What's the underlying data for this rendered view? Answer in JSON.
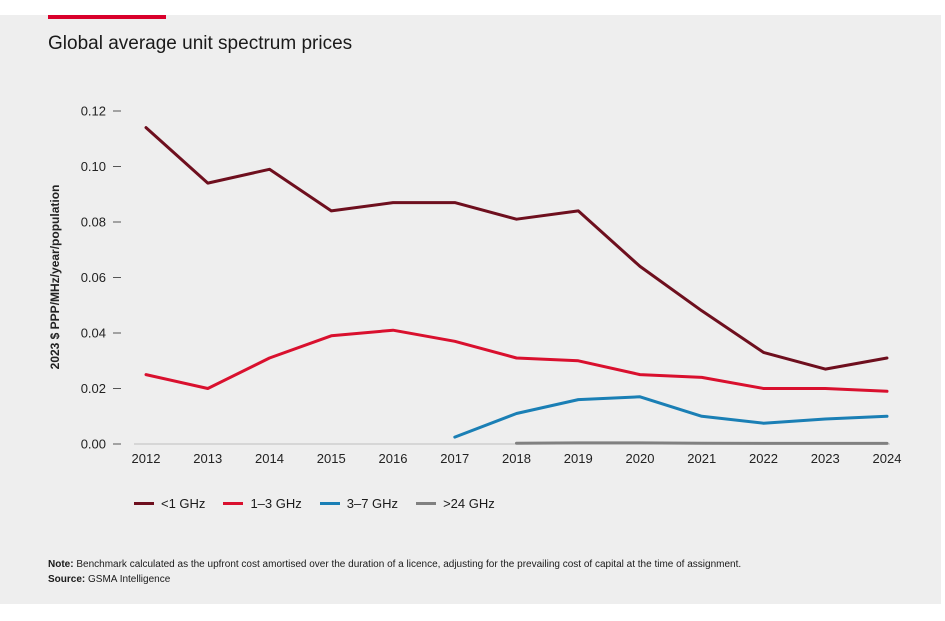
{
  "title": "Global average unit spectrum prices",
  "colors": {
    "accent": "#d9002b",
    "panel": "#eeeeee"
  },
  "notes": {
    "note_label": "Note:",
    "note_text": " Benchmark calculated as the upfront cost amortised over the duration of a licence, adjusting for the prevailing cost of capital at the time of assignment.",
    "source_label": "Source:",
    "source_text": " GSMA Intelligence"
  },
  "chart_data": {
    "type": "line",
    "title": "",
    "xlabel": "",
    "ylabel": "2023 $ PPP/MHz/year/population",
    "x": [
      "2012",
      "2013",
      "2014",
      "2015",
      "2016",
      "2017",
      "2018",
      "2019",
      "2020",
      "2021",
      "2022",
      "2023",
      "2024"
    ],
    "yticks": [
      "0.00",
      "0.02",
      "0.04",
      "0.06",
      "0.08",
      "0.10",
      "0.12"
    ],
    "ylim": [
      0,
      0.12
    ],
    "grid": false,
    "legend_position": "bottom-left",
    "series": [
      {
        "name": "<1 GHz",
        "color": "#6e0f1e",
        "values": [
          0.114,
          0.094,
          0.099,
          0.084,
          0.087,
          0.087,
          0.081,
          0.084,
          0.064,
          0.048,
          0.033,
          0.027,
          0.031
        ]
      },
      {
        "name": "1–3 GHz",
        "color": "#d9102e",
        "values": [
          0.025,
          0.02,
          0.031,
          0.039,
          0.041,
          0.037,
          0.031,
          0.03,
          0.025,
          0.024,
          0.02,
          0.02,
          0.019
        ]
      },
      {
        "name": "3–7 GHz",
        "color": "#1a7fb5",
        "values": [
          null,
          null,
          null,
          null,
          null,
          0.0025,
          0.011,
          0.016,
          0.017,
          0.01,
          0.0075,
          0.009,
          0.01
        ]
      },
      {
        "name": ">24 GHz",
        "color": "#808080",
        "values": [
          null,
          null,
          null,
          null,
          null,
          null,
          0.0003,
          0.0004,
          0.0004,
          0.0003,
          0.0002,
          0.0002,
          0.0002
        ]
      }
    ]
  }
}
